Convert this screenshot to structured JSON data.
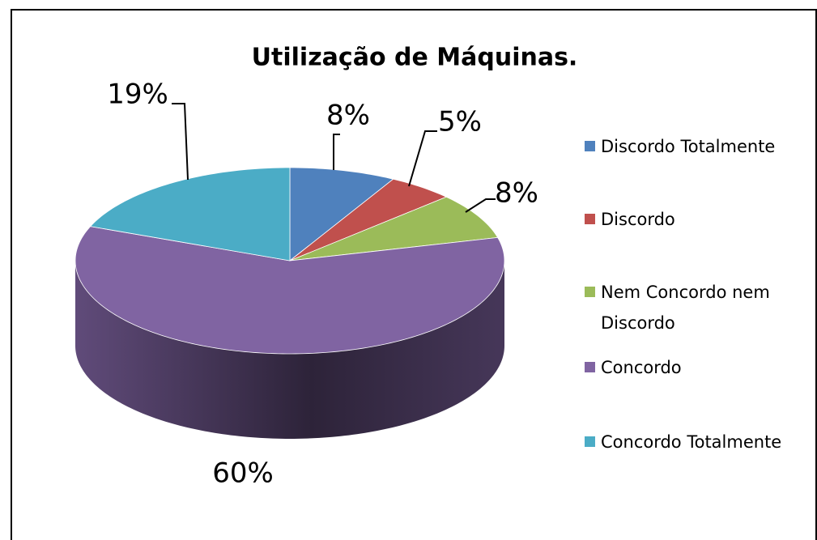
{
  "chart_data": {
    "type": "pie",
    "title": "Utilização de Máquinas.",
    "categories": [
      "Discordo Totalmente",
      "Discordo",
      "Nem Concordo nem Discordo",
      "Concordo",
      "Concordo Totalmente"
    ],
    "values": [
      8,
      5,
      8,
      60,
      19
    ],
    "value_labels": [
      "8%",
      "5%",
      "8%",
      "60%",
      "19%"
    ],
    "colors": [
      "#4f81bd",
      "#c0504d",
      "#9bbb59",
      "#8064a2",
      "#4bacc6"
    ],
    "legend": "right"
  }
}
